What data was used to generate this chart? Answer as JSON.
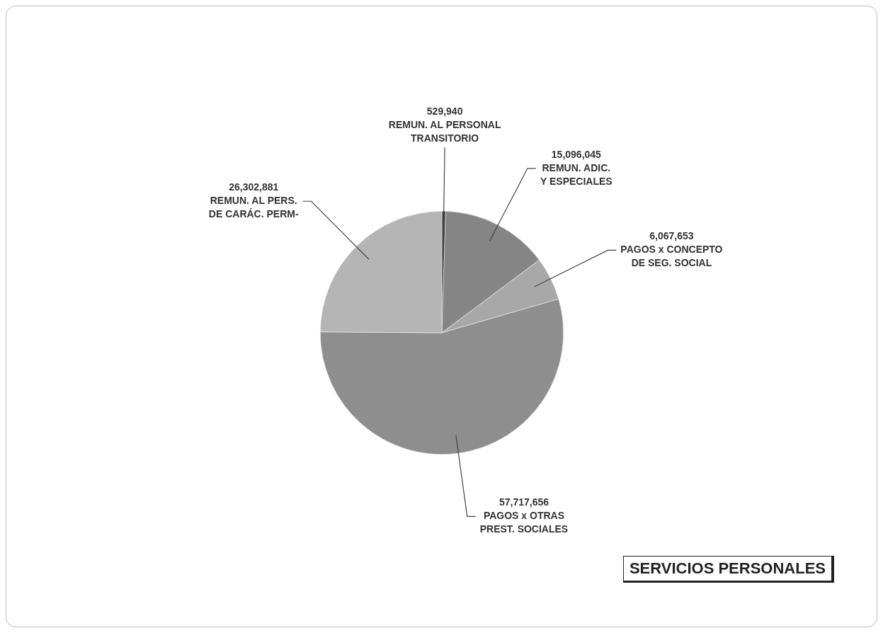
{
  "chart_data": {
    "type": "pie",
    "title": "SERVICIOS PERSONALES",
    "categories": [
      "REMUN. AL PERSONAL\nTRANSITORIO",
      "REMUN. ADIC.\nY ESPECIALES",
      "PAGOS x CONCEPTO\nDE SEG. SOCIAL",
      "PAGOS x OTRAS\nPREST. SOCIALES",
      "REMUN. AL PERS.\nDE CARÁC. PERM-"
    ],
    "values": [
      529940,
      15096045,
      6067653,
      57717656,
      26302881
    ],
    "colors": [
      "#3f3f3f",
      "#858585",
      "#a8a8a8",
      "#8e8e8e",
      "#b5b5b5"
    ],
    "value_labels": [
      "529,940",
      "15,096,045",
      "6,067,653",
      "57,717,656",
      "26,302,881"
    ],
    "legend": false
  }
}
